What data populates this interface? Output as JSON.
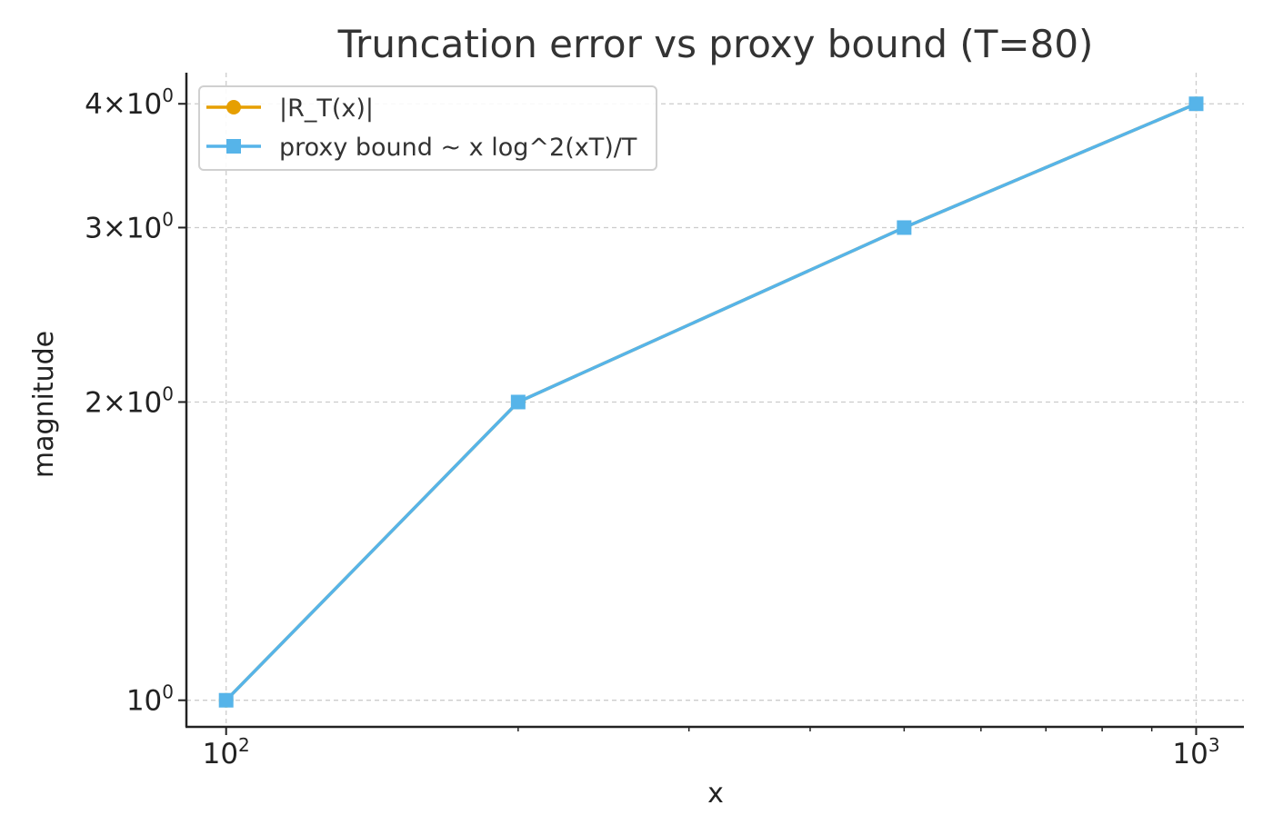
{
  "chart_data": {
    "type": "line",
    "title": "Truncation error vs proxy bound (T=80)",
    "xlabel": "x",
    "ylabel": "magnitude",
    "xscale": "log",
    "yscale": "log",
    "xlim": [
      91,
      1120
    ],
    "ylim": [
      0.94,
      4.3
    ],
    "grid": true,
    "legend_position": "top-left",
    "x_ticks": [
      {
        "value": 100,
        "base": "10",
        "exp": "2"
      },
      {
        "value": 1000,
        "base": "10",
        "exp": "3"
      }
    ],
    "y_ticks": [
      {
        "value": 1,
        "coef": "",
        "base": "10",
        "exp": "0"
      },
      {
        "value": 2,
        "coef": "2×",
        "base": "10",
        "exp": "0"
      },
      {
        "value": 3,
        "coef": "3×",
        "base": "10",
        "exp": "0"
      },
      {
        "value": 4,
        "coef": "4×",
        "base": "10",
        "exp": "0"
      }
    ],
    "series": [
      {
        "name": "|R_T(x)|",
        "color": "#E69F00",
        "marker": "circle",
        "x": [
          100,
          200,
          500,
          1000
        ],
        "values": [
          1,
          2,
          3,
          4
        ]
      },
      {
        "name": "proxy bound ~ x log^2(xT)/T",
        "color": "#56B4E9",
        "marker": "square",
        "x": [
          100,
          200,
          500,
          1000
        ],
        "values": [
          1,
          2,
          3,
          4
        ]
      }
    ]
  }
}
